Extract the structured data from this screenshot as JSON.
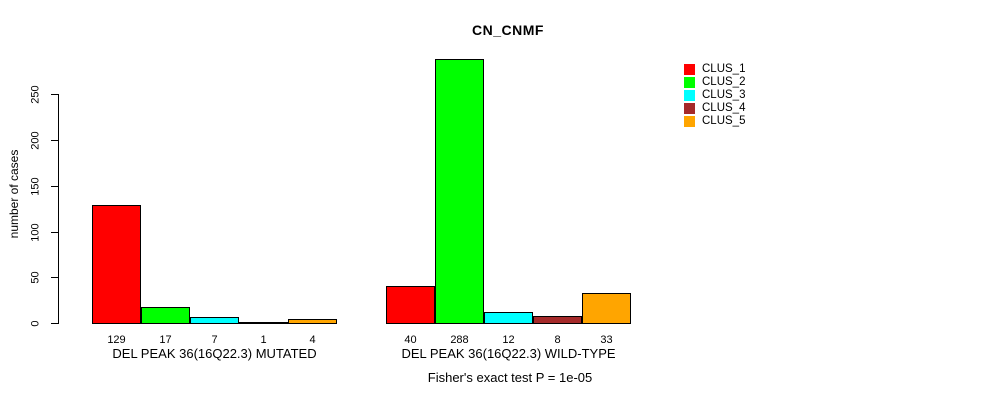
{
  "title": "CN_CNMF",
  "chart_data": {
    "type": "bar",
    "title": "CN_CNMF",
    "ylabel": "number of cases",
    "xlabel": "",
    "yticks": [
      0,
      50,
      100,
      150,
      200,
      250
    ],
    "ylim": [
      0,
      288
    ],
    "grid": false,
    "legend_position": "right",
    "series_names": [
      "CLUS_1",
      "CLUS_2",
      "CLUS_3",
      "CLUS_4",
      "CLUS_5"
    ],
    "colors": [
      "#FF0000",
      "#00FF00",
      "#00FFFF",
      "#A52A2A",
      "#FFA500"
    ],
    "groups": [
      {
        "label": "DEL PEAK 36(16Q22.3) MUTATED",
        "values": [
          129,
          17,
          7,
          1,
          4
        ]
      },
      {
        "label": "DEL PEAK 36(16Q22.3) WILD-TYPE",
        "values": [
          40,
          288,
          12,
          8,
          33
        ]
      }
    ],
    "annotation": "Fisher's exact test P = 1e-05"
  }
}
